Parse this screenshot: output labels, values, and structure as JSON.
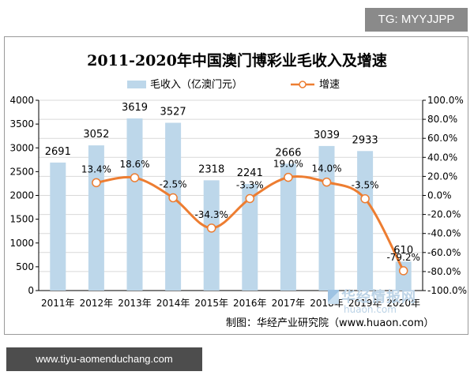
{
  "badge": {
    "text": "TG: MYYJJPP"
  },
  "banner": {
    "text": "www.tiyu-aomenduchang.com"
  },
  "watermark": {
    "name": "华经情报网",
    "url": "huaon.com"
  },
  "colors": {
    "bar": "#bdd7ea",
    "line": "#ed7d31",
    "grid": "#d9d9d9",
    "axis": "#000000"
  },
  "chart_data": {
    "type": "bar",
    "title": "2011-2020年中国澳门博彩业毛收入及增速",
    "source": "制图：华经产业研究院（www.huaon.com）",
    "categories": [
      "2011年",
      "2012年",
      "2013年",
      "2014年",
      "2015年",
      "2016年",
      "2017年",
      "2018年",
      "2019年",
      "2020年"
    ],
    "series": [
      {
        "name": "毛收入（亿澳门元）",
        "type": "bar",
        "axis": "left",
        "values": [
          2691,
          3052,
          3619,
          3527,
          2318,
          2241,
          2666,
          3039,
          2933,
          610
        ],
        "labels": [
          "2691",
          "3052",
          "3619",
          "3527",
          "2318",
          "2241",
          "2666",
          "3039",
          "2933",
          "610"
        ]
      },
      {
        "name": "增速",
        "type": "line",
        "axis": "right",
        "values": [
          null,
          13.4,
          18.6,
          -2.5,
          -34.3,
          -3.3,
          19.0,
          14.0,
          -3.5,
          -79.2
        ],
        "labels": [
          "",
          "13.4%",
          "18.6%",
          "-2.5%",
          "-34.3%",
          "-3.3%",
          "19.0%",
          "14.0%",
          "-3.5%",
          "-79.2%"
        ]
      }
    ],
    "yleft": {
      "min": 0,
      "max": 4000,
      "ticks": [
        "0",
        "500",
        "1000",
        "1500",
        "2000",
        "2500",
        "3000",
        "3500",
        "4000"
      ]
    },
    "yright": {
      "min": -100,
      "max": 100,
      "ticks": [
        "-100.0%",
        "-80.0%",
        "-60.0%",
        "-40.0%",
        "-20.0%",
        "0.0%",
        "20.0%",
        "40.0%",
        "60.0%",
        "80.0%",
        "100.0%"
      ]
    },
    "legend_position": "top",
    "grid": true
  }
}
